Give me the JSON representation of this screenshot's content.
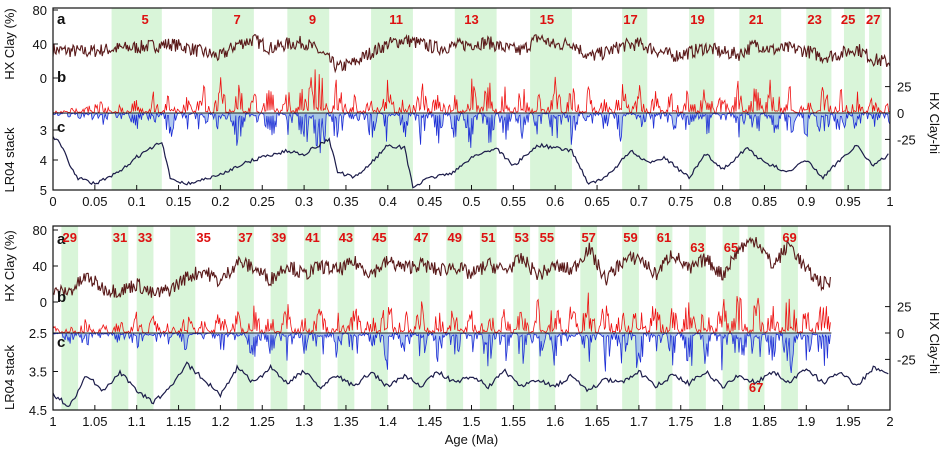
{
  "colors": {
    "clay": "#5a1a1a",
    "clay_hi_pos": "#ee1111",
    "clay_hi_neg": "#1f2fd6",
    "clay_hi_fill": "#8eb1e8",
    "lr04": "#1c1c4a",
    "band": "#d9f5d9",
    "mis_label": "#dd1111",
    "frame": "#111111"
  },
  "chart_data": [
    {
      "type": "line",
      "xlabel": "",
      "xlim": [
        0,
        1
      ],
      "x_ticks": [
        "0",
        "0.05",
        "0.1",
        "0.15",
        "0.2",
        "0.25",
        "0.3",
        "0.35",
        "0.4",
        "0.45",
        "0.5",
        "0.55",
        "0.6",
        "0.65",
        "0.7",
        "0.75",
        "0.8",
        "0.85",
        "0.9",
        "0.95",
        "1"
      ],
      "panels": [
        {
          "letter": "a",
          "ylabel": "HX Clay (%)",
          "ylim": [
            0,
            80
          ],
          "y_ticks": [
            "80",
            "40",
            "0"
          ],
          "y_tick_values": [
            80,
            40,
            0
          ],
          "side": "left"
        },
        {
          "letter": "b",
          "ylabel": "HX Clay-hi",
          "ylim": [
            -40,
            40
          ],
          "y_ticks": [
            "25",
            "0",
            "-25"
          ],
          "y_tick_values": [
            25,
            0,
            -25
          ],
          "side": "right"
        },
        {
          "letter": "c",
          "ylabel": "LR04 stack",
          "ylim": [
            5,
            2.6
          ],
          "y_ticks": [
            "3",
            "4",
            "5"
          ],
          "y_tick_values": [
            3,
            4,
            5
          ],
          "side": "left"
        }
      ],
      "mis_labels": [
        {
          "label": "5",
          "age": 0.11
        },
        {
          "label": "7",
          "age": 0.22
        },
        {
          "label": "9",
          "age": 0.31
        },
        {
          "label": "11",
          "age": 0.41
        },
        {
          "label": "13",
          "age": 0.5
        },
        {
          "label": "15",
          "age": 0.59
        },
        {
          "label": "17",
          "age": 0.69
        },
        {
          "label": "19",
          "age": 0.77
        },
        {
          "label": "21",
          "age": 0.84
        },
        {
          "label": "23",
          "age": 0.91
        },
        {
          "label": "25",
          "age": 0.95
        },
        {
          "label": "27",
          "age": 0.98
        }
      ],
      "interglacial_bands": [
        [
          0.07,
          0.13
        ],
        [
          0.19,
          0.24
        ],
        [
          0.28,
          0.33
        ],
        [
          0.38,
          0.43
        ],
        [
          0.48,
          0.53
        ],
        [
          0.57,
          0.62
        ],
        [
          0.68,
          0.71
        ],
        [
          0.76,
          0.79
        ],
        [
          0.82,
          0.87
        ],
        [
          0.9,
          0.93
        ],
        [
          0.945,
          0.97
        ],
        [
          0.975,
          0.99
        ]
      ],
      "clay_series": {
        "name": "HX Clay",
        "x": [
          0.0,
          0.02,
          0.04,
          0.06,
          0.08,
          0.1,
          0.12,
          0.14,
          0.16,
          0.18,
          0.2,
          0.22,
          0.24,
          0.26,
          0.28,
          0.3,
          0.32,
          0.34,
          0.36,
          0.38,
          0.4,
          0.42,
          0.44,
          0.46,
          0.48,
          0.5,
          0.52,
          0.54,
          0.56,
          0.58,
          0.6,
          0.62,
          0.64,
          0.66,
          0.68,
          0.7,
          0.72,
          0.74,
          0.76,
          0.78,
          0.8,
          0.82,
          0.84,
          0.86,
          0.88,
          0.9,
          0.92,
          0.94,
          0.96,
          0.98,
          1.0
        ],
        "values": [
          33,
          32,
          31,
          33,
          35,
          36,
          38,
          40,
          36,
          30,
          25,
          40,
          45,
          35,
          40,
          42,
          30,
          12,
          18,
          30,
          40,
          45,
          40,
          35,
          38,
          40,
          42,
          35,
          32,
          48,
          38,
          42,
          25,
          30,
          38,
          40,
          33,
          26,
          30,
          36,
          30,
          28,
          40,
          33,
          35,
          32,
          25,
          28,
          35,
          22,
          18
        ]
      },
      "clay_hi_series": {
        "name": "HX Clay-hi",
        "x": [
          0.0,
          0.02,
          0.04,
          0.06,
          0.08,
          0.1,
          0.12,
          0.14,
          0.16,
          0.18,
          0.2,
          0.22,
          0.24,
          0.26,
          0.28,
          0.3,
          0.32,
          0.34,
          0.36,
          0.38,
          0.4,
          0.42,
          0.44,
          0.46,
          0.48,
          0.5,
          0.52,
          0.54,
          0.56,
          0.58,
          0.6,
          0.62,
          0.64,
          0.66,
          0.68,
          0.7,
          0.72,
          0.74,
          0.76,
          0.78,
          0.8,
          0.82,
          0.84,
          0.86,
          0.88,
          0.9,
          0.92,
          0.94,
          0.96,
          0.98,
          1.0
        ],
        "values": [
          1,
          3,
          4,
          8,
          -6,
          12,
          -14,
          18,
          -12,
          20,
          -24,
          25,
          -16,
          22,
          -18,
          24,
          30,
          -26,
          16,
          -20,
          22,
          -18,
          25,
          -22,
          20,
          -26,
          26,
          -20,
          22,
          -18,
          24,
          -22,
          18,
          -16,
          22,
          -20,
          16,
          -18,
          20,
          -22,
          18,
          -24,
          26,
          -30,
          20,
          -18,
          24,
          -20,
          16,
          -14,
          12
        ]
      },
      "lr04_series": {
        "name": "LR04 stack",
        "x": [
          0.0,
          0.01,
          0.02,
          0.03,
          0.05,
          0.08,
          0.1,
          0.13,
          0.14,
          0.16,
          0.2,
          0.22,
          0.25,
          0.28,
          0.3,
          0.33,
          0.34,
          0.36,
          0.38,
          0.4,
          0.42,
          0.43,
          0.45,
          0.48,
          0.5,
          0.53,
          0.55,
          0.58,
          0.62,
          0.64,
          0.66,
          0.69,
          0.71,
          0.73,
          0.76,
          0.78,
          0.8,
          0.83,
          0.85,
          0.88,
          0.9,
          0.92,
          0.94,
          0.96,
          0.98,
          1.0
        ],
        "values": [
          3.2,
          3.5,
          4.2,
          4.6,
          4.8,
          4.4,
          3.9,
          3.4,
          4.6,
          4.8,
          4.5,
          4.2,
          3.9,
          3.7,
          3.8,
          3.3,
          4.4,
          4.6,
          4.1,
          3.5,
          3.6,
          4.9,
          4.6,
          4.4,
          3.9,
          3.6,
          4.2,
          3.5,
          3.7,
          4.8,
          4.6,
          3.7,
          4.1,
          3.9,
          4.6,
          3.8,
          4.3,
          3.6,
          4.1,
          4.4,
          4.0,
          4.6,
          4.0,
          3.5,
          4.2,
          3.8
        ]
      }
    },
    {
      "type": "line",
      "xlabel": "Age (Ma)",
      "xlim": [
        1,
        2
      ],
      "x_ticks": [
        "1",
        "1.05",
        "1.1",
        "1.15",
        "1.2",
        "1.25",
        "1.3",
        "1.35",
        "1.4",
        "1.45",
        "1.5",
        "1.55",
        "1.6",
        "1.65",
        "1.7",
        "1.75",
        "1.8",
        "1.85",
        "1.9",
        "1.95",
        "2"
      ],
      "panels": [
        {
          "letter": "a",
          "ylabel": "HX Clay (%)",
          "ylim": [
            0,
            80
          ],
          "y_ticks": [
            "80",
            "40",
            "0"
          ],
          "y_tick_values": [
            80,
            40,
            0
          ],
          "side": "left"
        },
        {
          "letter": "b",
          "ylabel": "HX Clay-hi",
          "ylim": [
            -40,
            40
          ],
          "y_ticks": [
            "25",
            "0",
            "-25"
          ],
          "y_tick_values": [
            25,
            0,
            -25
          ],
          "side": "right"
        },
        {
          "letter": "c",
          "ylabel": "LR04 stack",
          "ylim": [
            4.5,
            2.5
          ],
          "y_ticks": [
            "2.5",
            "3.5",
            "4.5"
          ],
          "y_tick_values": [
            2.5,
            3.5,
            4.5
          ],
          "side": "left"
        }
      ],
      "mis_labels": [
        {
          "label": "29",
          "age": 1.02
        },
        {
          "label": "31",
          "age": 1.08
        },
        {
          "label": "33",
          "age": 1.11
        },
        {
          "label": "35",
          "age": 1.18
        },
        {
          "label": "37",
          "age": 1.23
        },
        {
          "label": "39",
          "age": 1.27
        },
        {
          "label": "41",
          "age": 1.31
        },
        {
          "label": "43",
          "age": 1.35
        },
        {
          "label": "45",
          "age": 1.39
        },
        {
          "label": "47",
          "age": 1.44
        },
        {
          "label": "49",
          "age": 1.48
        },
        {
          "label": "51",
          "age": 1.52
        },
        {
          "label": "53",
          "age": 1.56
        },
        {
          "label": "55",
          "age": 1.59
        },
        {
          "label": "57",
          "age": 1.64
        },
        {
          "label": "59",
          "age": 1.69
        },
        {
          "label": "61",
          "age": 1.73
        },
        {
          "label": "63",
          "age": 1.77
        },
        {
          "label": "65",
          "age": 1.81
        },
        {
          "label": "67",
          "age": 1.84
        },
        {
          "label": "69",
          "age": 1.88
        }
      ],
      "interglacial_bands": [
        [
          1.01,
          1.03
        ],
        [
          1.07,
          1.09
        ],
        [
          1.1,
          1.12
        ],
        [
          1.14,
          1.17
        ],
        [
          1.22,
          1.24
        ],
        [
          1.26,
          1.28
        ],
        [
          1.3,
          1.32
        ],
        [
          1.34,
          1.36
        ],
        [
          1.38,
          1.4
        ],
        [
          1.43,
          1.45
        ],
        [
          1.47,
          1.49
        ],
        [
          1.51,
          1.53
        ],
        [
          1.55,
          1.57
        ],
        [
          1.58,
          1.6
        ],
        [
          1.63,
          1.65
        ],
        [
          1.68,
          1.7
        ],
        [
          1.72,
          1.74
        ],
        [
          1.76,
          1.78
        ],
        [
          1.8,
          1.82
        ],
        [
          1.83,
          1.85
        ],
        [
          1.87,
          1.89
        ]
      ],
      "clay_series": {
        "name": "HX Clay",
        "x": [
          1.0,
          1.02,
          1.04,
          1.06,
          1.08,
          1.1,
          1.12,
          1.14,
          1.16,
          1.18,
          1.2,
          1.22,
          1.24,
          1.26,
          1.28,
          1.3,
          1.32,
          1.34,
          1.36,
          1.38,
          1.4,
          1.42,
          1.44,
          1.46,
          1.48,
          1.5,
          1.52,
          1.54,
          1.56,
          1.58,
          1.6,
          1.62,
          1.64,
          1.66,
          1.68,
          1.7,
          1.72,
          1.74,
          1.76,
          1.78,
          1.8,
          1.82,
          1.84,
          1.86,
          1.88,
          1.9,
          1.92,
          1.93
        ],
        "values": [
          10,
          12,
          28,
          15,
          12,
          20,
          8,
          14,
          28,
          35,
          22,
          45,
          38,
          25,
          42,
          30,
          40,
          35,
          44,
          32,
          45,
          38,
          42,
          35,
          40,
          30,
          42,
          35,
          48,
          30,
          40,
          35,
          60,
          25,
          45,
          50,
          30,
          55,
          35,
          48,
          30,
          60,
          70,
          40,
          65,
          35,
          20,
          22
        ]
      },
      "clay_hi_series": {
        "name": "HX Clay-hi",
        "x": [
          1.0,
          1.02,
          1.04,
          1.06,
          1.08,
          1.1,
          1.12,
          1.14,
          1.16,
          1.18,
          1.2,
          1.22,
          1.24,
          1.26,
          1.28,
          1.3,
          1.32,
          1.34,
          1.36,
          1.38,
          1.4,
          1.42,
          1.44,
          1.46,
          1.48,
          1.5,
          1.52,
          1.54,
          1.56,
          1.58,
          1.6,
          1.62,
          1.64,
          1.66,
          1.68,
          1.7,
          1.72,
          1.74,
          1.76,
          1.78,
          1.8,
          1.82,
          1.84,
          1.86,
          1.88,
          1.9,
          1.92,
          1.93
        ],
        "values": [
          8,
          -10,
          12,
          -8,
          10,
          -14,
          12,
          -10,
          16,
          -12,
          18,
          -16,
          22,
          -18,
          20,
          -16,
          24,
          -20,
          22,
          -18,
          26,
          -22,
          24,
          -20,
          22,
          -18,
          26,
          -22,
          24,
          -26,
          28,
          -24,
          30,
          -28,
          26,
          -30,
          28,
          -24,
          30,
          -26,
          28,
          -36,
          30,
          -28,
          32,
          -22,
          26,
          10
        ]
      },
      "lr04_series": {
        "name": "LR04 stack",
        "x": [
          1.0,
          1.02,
          1.04,
          1.06,
          1.08,
          1.1,
          1.12,
          1.14,
          1.16,
          1.18,
          1.2,
          1.22,
          1.24,
          1.26,
          1.28,
          1.3,
          1.32,
          1.34,
          1.36,
          1.38,
          1.4,
          1.42,
          1.44,
          1.46,
          1.48,
          1.5,
          1.52,
          1.54,
          1.56,
          1.58,
          1.6,
          1.62,
          1.64,
          1.66,
          1.68,
          1.7,
          1.72,
          1.74,
          1.76,
          1.78,
          1.8,
          1.82,
          1.84,
          1.86,
          1.88,
          1.9,
          1.92,
          1.94,
          1.96,
          1.98,
          2.0
        ],
        "values": [
          4.1,
          4.4,
          3.6,
          4.0,
          3.5,
          4.0,
          4.3,
          3.9,
          3.3,
          3.7,
          4.1,
          3.4,
          3.8,
          3.4,
          3.8,
          3.5,
          3.9,
          3.6,
          3.9,
          3.5,
          3.9,
          3.6,
          3.9,
          3.5,
          3.8,
          3.6,
          3.9,
          3.5,
          3.9,
          3.7,
          3.9,
          3.6,
          4.0,
          3.7,
          3.8,
          3.5,
          3.9,
          3.6,
          3.8,
          3.5,
          3.9,
          3.6,
          3.8,
          3.5,
          3.8,
          3.4,
          3.8,
          3.5,
          3.9,
          3.4,
          3.6
        ]
      }
    }
  ]
}
